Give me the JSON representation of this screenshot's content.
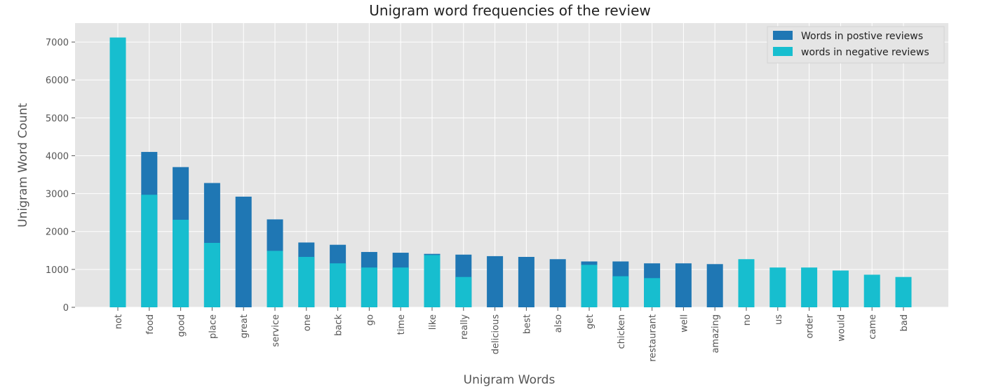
{
  "chart_data": {
    "type": "bar",
    "stacked": "overlay",
    "title": "Unigram word frequencies of the review",
    "xlabel": "Unigram Words",
    "ylabel": "Unigram Word Count",
    "ylim": [
      0,
      7500
    ],
    "yticks": [
      0,
      1000,
      2000,
      3000,
      4000,
      5000,
      6000,
      7000
    ],
    "grid": true,
    "legend_position": "top-right",
    "categories": [
      "not",
      "food",
      "good",
      "place",
      "great",
      "service",
      "one",
      "back",
      "go",
      "time",
      "like",
      "really",
      "delicious",
      "best",
      "also",
      "get",
      "chicken",
      "restaurant",
      "well",
      "amazing",
      "no",
      "us",
      "order",
      "would",
      "came",
      "bad"
    ],
    "series": [
      {
        "name": "Words in postive reviews",
        "color": "#1f77b4",
        "values": [
          0,
          4100,
          3700,
          3280,
          2920,
          2320,
          1710,
          1650,
          1460,
          1440,
          1410,
          1390,
          1350,
          1330,
          1270,
          1210,
          1210,
          1160,
          1160,
          1140,
          0,
          0,
          0,
          0,
          0,
          0
        ]
      },
      {
        "name": "words in negative reviews",
        "color": "#17becf",
        "values": [
          7120,
          2970,
          2310,
          1700,
          0,
          1490,
          1330,
          1160,
          1050,
          1050,
          1380,
          800,
          0,
          0,
          0,
          1120,
          820,
          770,
          0,
          0,
          1270,
          1050,
          1050,
          970,
          860,
          800
        ]
      }
    ]
  }
}
